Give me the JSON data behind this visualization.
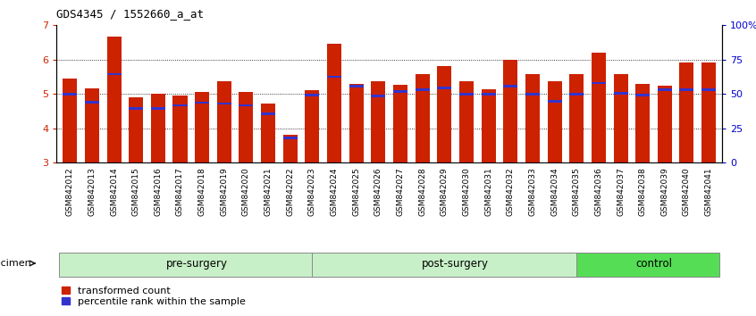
{
  "title": "GDS4345 / 1552660_a_at",
  "categories": [
    "GSM842012",
    "GSM842013",
    "GSM842014",
    "GSM842015",
    "GSM842016",
    "GSM842017",
    "GSM842018",
    "GSM842019",
    "GSM842020",
    "GSM842021",
    "GSM842022",
    "GSM842023",
    "GSM842024",
    "GSM842025",
    "GSM842026",
    "GSM842027",
    "GSM842028",
    "GSM842029",
    "GSM842030",
    "GSM842031",
    "GSM842032",
    "GSM842033",
    "GSM842034",
    "GSM842035",
    "GSM842036",
    "GSM842037",
    "GSM842038",
    "GSM842039",
    "GSM842040",
    "GSM842041"
  ],
  "red_values": [
    5.45,
    5.17,
    6.67,
    4.9,
    5.0,
    4.95,
    5.05,
    5.38,
    5.05,
    4.72,
    3.82,
    5.1,
    6.45,
    5.3,
    5.38,
    5.27,
    5.57,
    5.82,
    5.37,
    5.15,
    6.0,
    5.58,
    5.38,
    5.57,
    6.2,
    5.58,
    5.3,
    5.25,
    5.93,
    5.92
  ],
  "blue_values": [
    5.0,
    4.77,
    5.58,
    4.58,
    4.58,
    4.67,
    4.75,
    4.72,
    4.67,
    4.43,
    3.72,
    4.97,
    5.5,
    5.22,
    4.95,
    5.07,
    5.13,
    5.18,
    5.0,
    5.0,
    5.22,
    5.0,
    4.78,
    5.0,
    5.32,
    5.03,
    4.97,
    5.13,
    5.13,
    5.13
  ],
  "ymin": 3.0,
  "ymax": 7.0,
  "yticks": [
    3,
    4,
    5,
    6,
    7
  ],
  "right_ytick_pct": [
    0,
    25,
    50,
    75,
    100
  ],
  "right_ylabels": [
    "0",
    "25",
    "50",
    "75",
    "100%"
  ],
  "groups": [
    {
      "label": "pre-surgery",
      "start": 0,
      "end": 11,
      "color": "#C8F0C8"
    },
    {
      "label": "post-surgery",
      "start": 12,
      "end": 23,
      "color": "#C8F0C8"
    },
    {
      "label": "control",
      "start": 25,
      "end": 29,
      "color": "#66DD66"
    }
  ],
  "bar_color": "#CC2200",
  "blue_color": "#3333CC",
  "bar_width": 0.65,
  "left_tick_color": "#CC2200",
  "right_tick_color": "#0000CC",
  "xtick_bg_color": "#C8C8C8",
  "group_label_lighter": "#C8F0C8",
  "group_label_darker": "#55DD55"
}
